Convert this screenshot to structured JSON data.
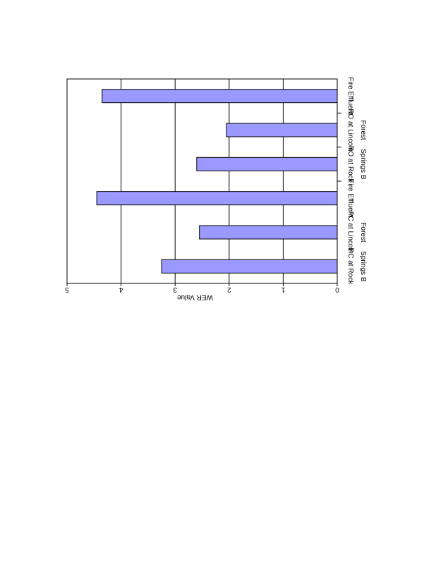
{
  "chart_data": {
    "type": "bar",
    "orientation": "horizontal",
    "rotation_deg": 90,
    "categories": [
      [
        "PC at Rock",
        "Springs B"
      ],
      [
        "PC at Lincoln",
        "Forest"
      ],
      [
        "Fire Effluent"
      ],
      [
        "RO at Rock",
        "Springs B"
      ],
      [
        "RO at Lincoln",
        "Forest"
      ],
      [
        "Fire Effluent"
      ]
    ],
    "values": [
      3.25,
      2.55,
      4.45,
      2.6,
      2.05,
      4.35
    ],
    "bar_color": "#9999ff",
    "xlim": [
      0,
      5
    ],
    "x_ticks": [
      0,
      1,
      2,
      3,
      4,
      5
    ],
    "x_tick_labels": [
      "0",
      "1",
      "2",
      "3",
      "4",
      "5"
    ],
    "xlabel": "WER Value",
    "grid": true,
    "group_separators_after": [
      3
    ]
  }
}
